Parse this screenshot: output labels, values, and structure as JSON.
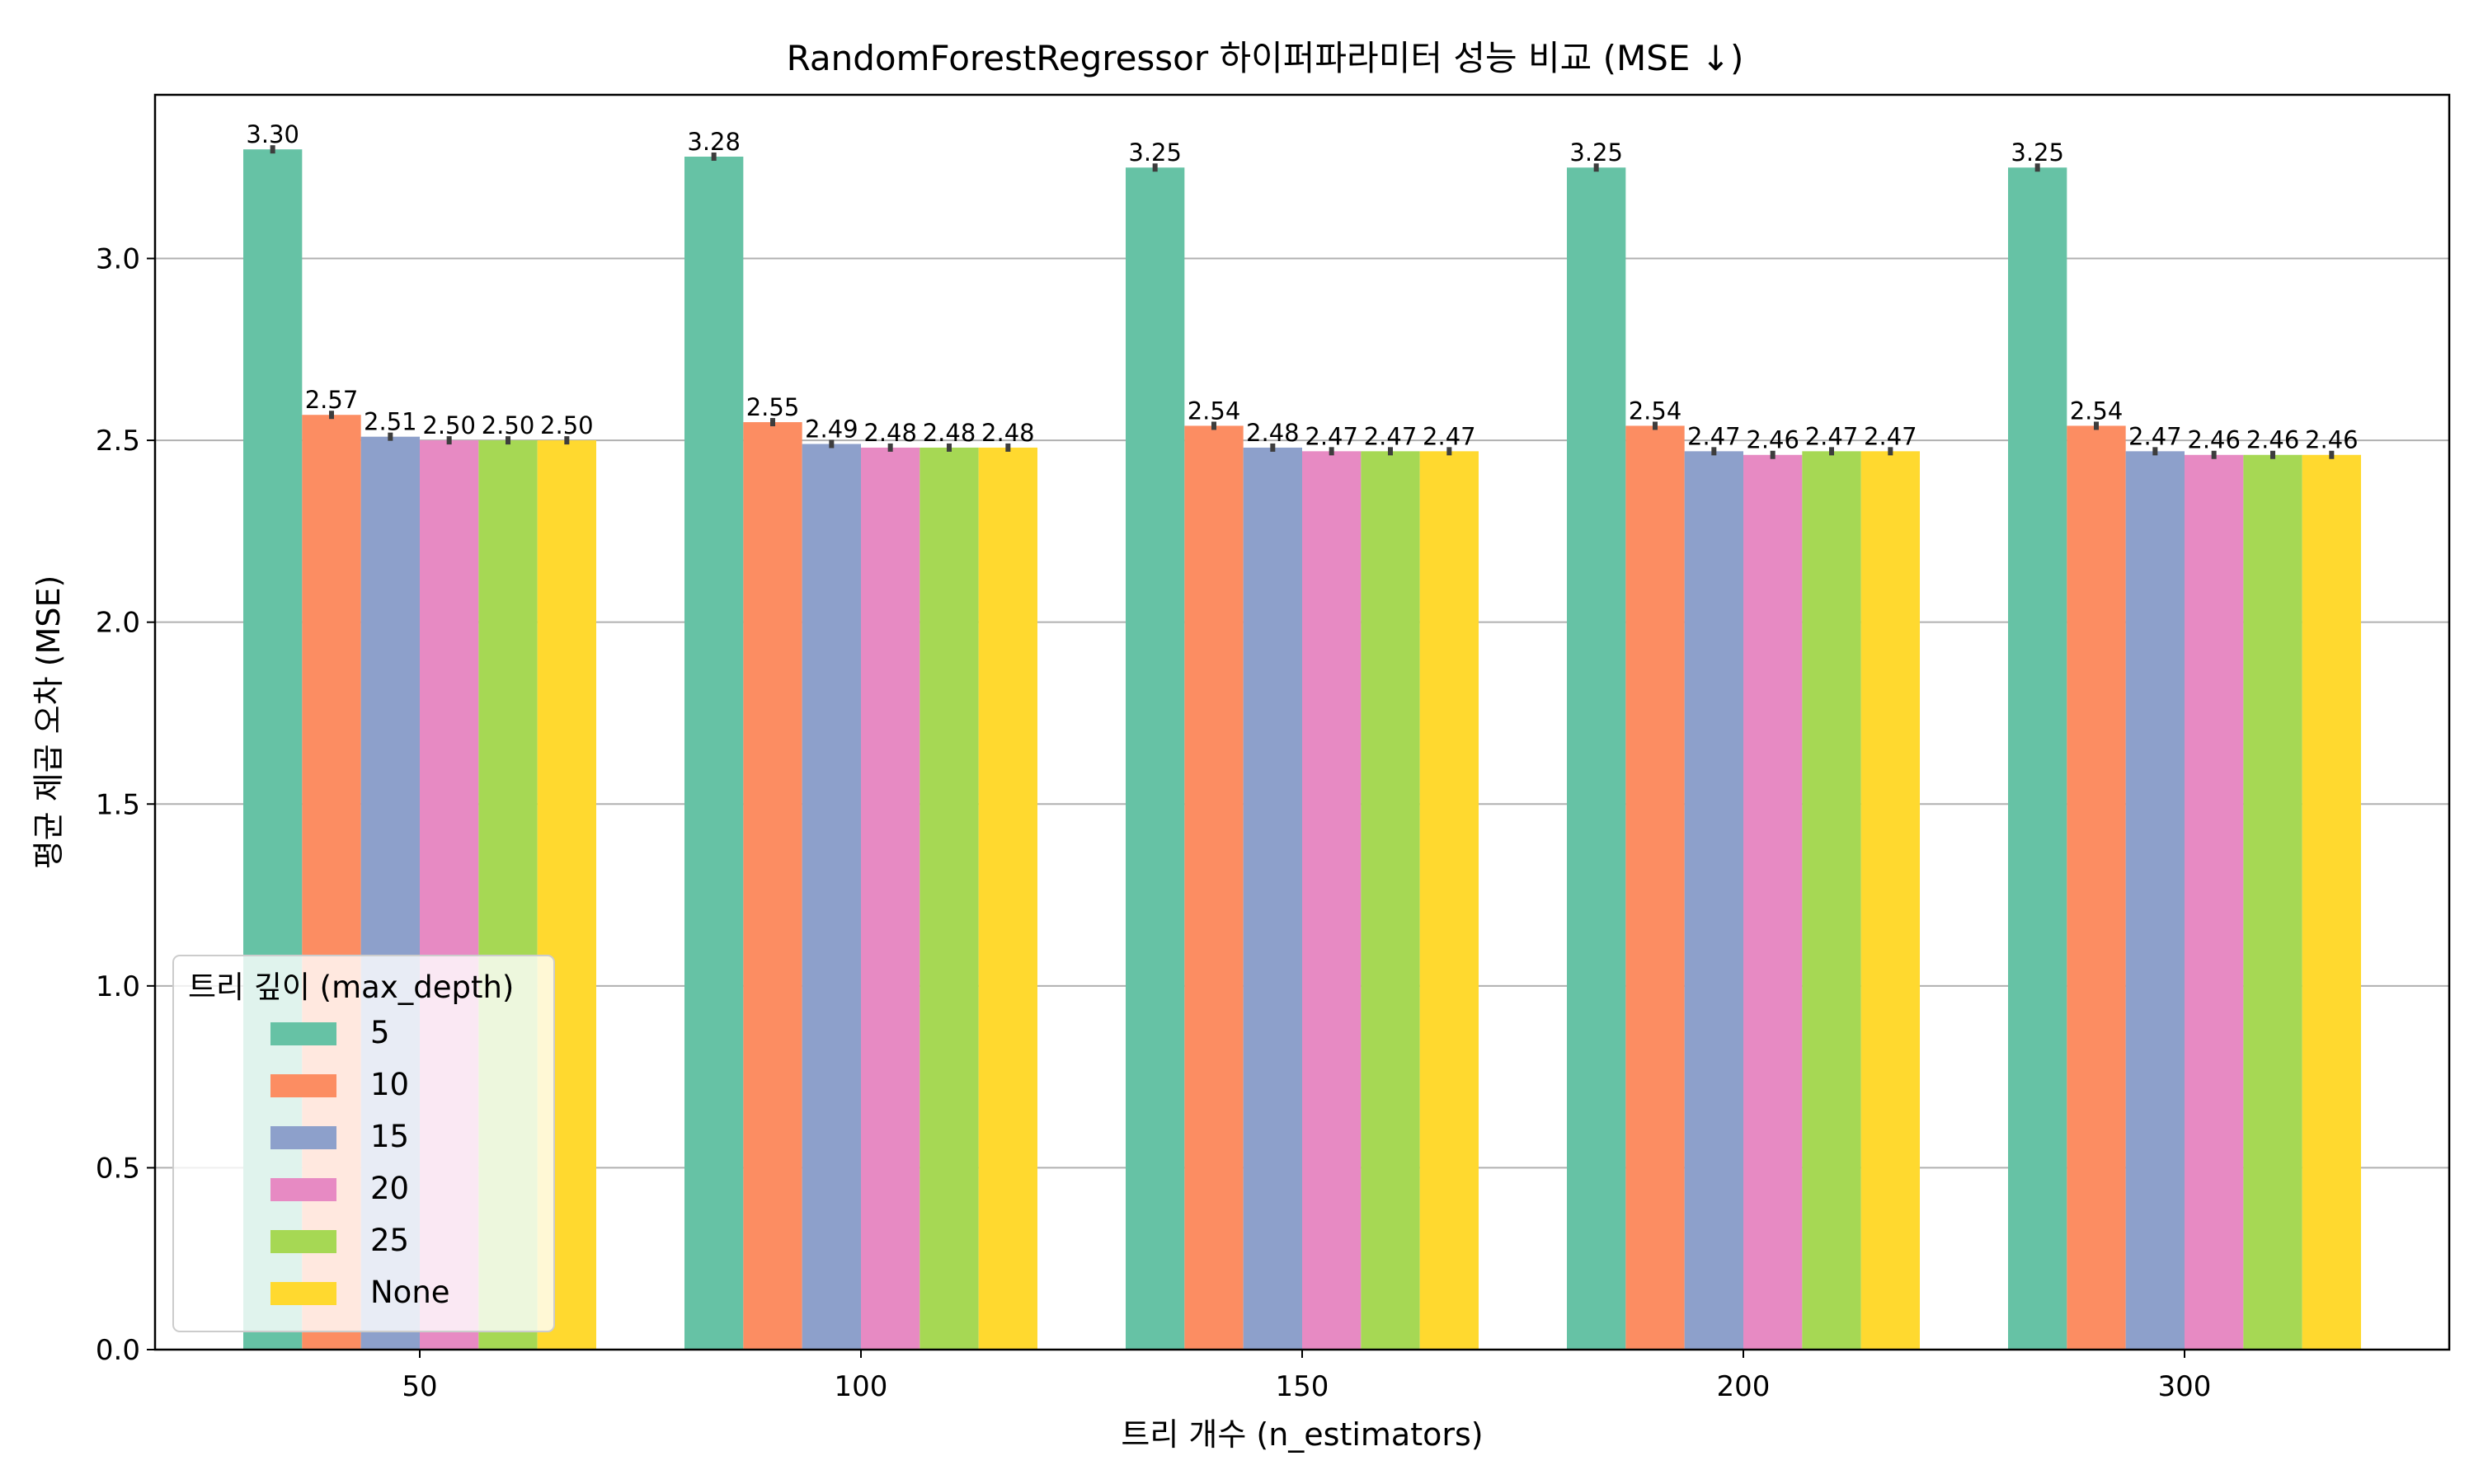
{
  "chart_data": {
    "type": "bar",
    "title": "RandomForestRegressor 하이퍼파라미터 성능 비교 (MSE ↓)",
    "xlabel": "트리 개수 (n_estimators)",
    "ylabel": "평균 제곱 오차 (MSE)",
    "categories": [
      "50",
      "100",
      "150",
      "200",
      "300"
    ],
    "ylim": [
      0,
      3.45
    ],
    "yticks": [
      "0.0",
      "0.5",
      "1.0",
      "1.5",
      "2.0",
      "2.5",
      "3.0"
    ],
    "grid": "y",
    "legend": {
      "title": "트리 깊이 (max_depth)",
      "placement": "lower-left"
    },
    "series": [
      {
        "name": "5",
        "color": "#66c2a5",
        "values": [
          3.3,
          3.28,
          3.25,
          3.25,
          3.25
        ],
        "labels": [
          "3.30",
          "3.28",
          "3.25",
          "3.25",
          "3.25"
        ]
      },
      {
        "name": "10",
        "color": "#fc8d62",
        "values": [
          2.57,
          2.55,
          2.54,
          2.54,
          2.54
        ],
        "labels": [
          "2.57",
          "2.55",
          "2.54",
          "2.54",
          "2.54"
        ]
      },
      {
        "name": "15",
        "color": "#8da0cb",
        "values": [
          2.51,
          2.49,
          2.48,
          2.47,
          2.47
        ],
        "labels": [
          "2.51",
          "2.49",
          "2.48",
          "2.47",
          "2.47"
        ]
      },
      {
        "name": "20",
        "color": "#e78ac3",
        "values": [
          2.5,
          2.48,
          2.47,
          2.46,
          2.46
        ],
        "labels": [
          "2.50",
          "2.48",
          "2.47",
          "2.46",
          "2.46"
        ]
      },
      {
        "name": "25",
        "color": "#a6d854",
        "values": [
          2.5,
          2.48,
          2.47,
          2.47,
          2.46
        ],
        "labels": [
          "2.50",
          "2.48",
          "2.47",
          "2.47",
          "2.46"
        ]
      },
      {
        "name": "None",
        "color": "#ffd92f",
        "values": [
          2.5,
          2.48,
          2.47,
          2.47,
          2.46
        ],
        "labels": [
          "2.50",
          "2.48",
          "2.47",
          "2.47",
          "2.46"
        ]
      }
    ]
  }
}
